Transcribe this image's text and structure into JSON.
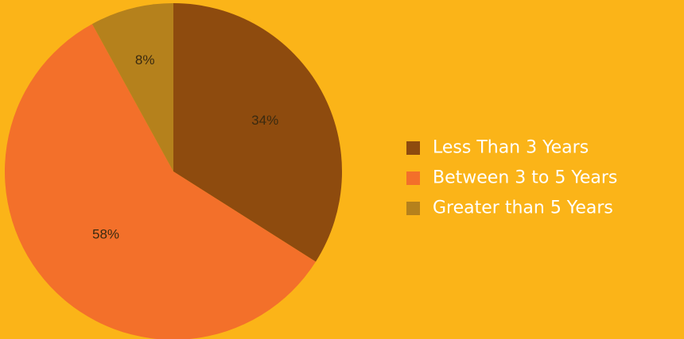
{
  "chart_data": {
    "type": "pie",
    "title": "",
    "categories": [
      "Less Than 3 Years",
      "Between 3 to 5 Years",
      "Greater than 5 Years"
    ],
    "values": [
      34,
      58,
      8
    ],
    "value_labels": [
      "34%",
      "58%",
      "8%"
    ],
    "colors": [
      "#8E4B0E",
      "#F3702A",
      "#B5811C"
    ],
    "background_color": "#FBB418",
    "legend_text_color": "#FFFFFF",
    "legend_position": "right",
    "start_angle_deg": 0,
    "direction": "clockwise"
  }
}
